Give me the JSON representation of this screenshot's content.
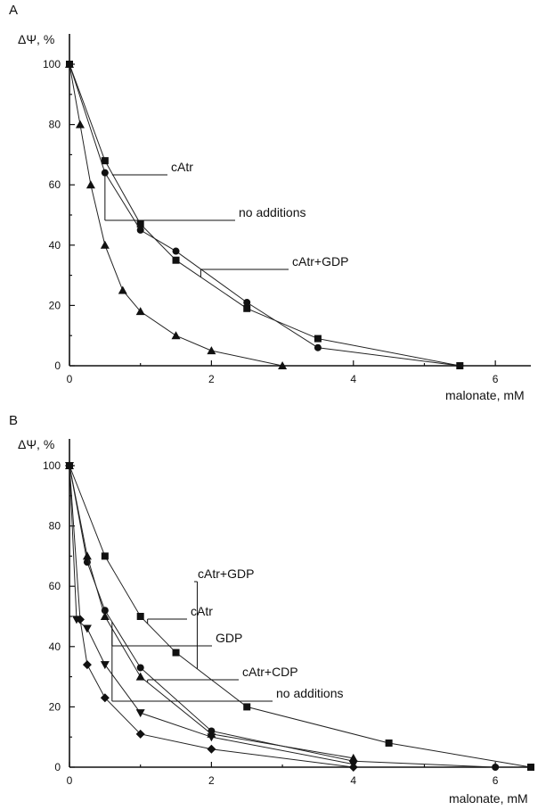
{
  "chart_data": [
    {
      "panel_label": "A",
      "type": "line",
      "xlabel": "malonate, mM",
      "ylabel": "ΔΨ, %",
      "xlim": [
        0,
        6.5
      ],
      "ylim": [
        0,
        105
      ],
      "xticks": [
        0,
        2,
        4,
        6
      ],
      "yticks": [
        0,
        20,
        40,
        60,
        80,
        100
      ],
      "grid": false,
      "series": [
        {
          "name": "cAtr",
          "marker": "square",
          "x": [
            0,
            0.5,
            1.0,
            1.5,
            2.5,
            3.5,
            5.5
          ],
          "y": [
            100,
            68,
            47,
            35,
            19,
            9,
            0
          ]
        },
        {
          "name": "no additions",
          "marker": "circle",
          "x": [
            0,
            0.5,
            1.0,
            1.5,
            2.5,
            3.5,
            5.5
          ],
          "y": [
            100,
            64,
            45,
            38,
            21,
            6,
            0
          ]
        },
        {
          "name": "",
          "marker": "triangle",
          "x": [
            0,
            0.15,
            0.3,
            0.5,
            0.75,
            1.0,
            1.5,
            2.0,
            3.0
          ],
          "y": [
            100,
            80,
            60,
            40,
            25,
            18,
            10,
            5,
            0
          ]
        }
      ],
      "annotations": [
        {
          "text": "cAtr",
          "series": 0,
          "at_x": 0.6
        },
        {
          "text": "no additions",
          "series": 1,
          "at_x": 0.5
        },
        {
          "text": "cAtr+GDP",
          "series": 0,
          "at_x": 1.85
        }
      ]
    },
    {
      "panel_label": "B",
      "type": "line",
      "xlabel": "malonate, mM",
      "ylabel": "ΔΨ, %",
      "xlim": [
        0,
        6.5
      ],
      "ylim": [
        0,
        105
      ],
      "xticks": [
        0,
        2,
        4,
        6
      ],
      "yticks": [
        0,
        20,
        40,
        60,
        80,
        100
      ],
      "grid": false,
      "series": [
        {
          "name": "cAtr+GDP",
          "marker": "square",
          "x": [
            0,
            0.5,
            1.0,
            1.5,
            2.5,
            4.5,
            6.5
          ],
          "y": [
            100,
            70,
            50,
            38,
            20,
            8,
            0
          ]
        },
        {
          "name": "cAtr",
          "marker": "circle",
          "x": [
            0,
            0.25,
            0.5,
            1.0,
            2.0,
            4.0,
            6.0
          ],
          "y": [
            100,
            68,
            52,
            33,
            12,
            2,
            0
          ]
        },
        {
          "name": "GDP",
          "marker": "triangle",
          "x": [
            0,
            0.25,
            0.5,
            1.0,
            2.0,
            4.0
          ],
          "y": [
            100,
            70,
            50,
            30,
            11,
            3
          ]
        },
        {
          "name": "cAtr+CDP",
          "marker": "triangle-down",
          "x": [
            0,
            0.1,
            0.25,
            0.5,
            1.0,
            2.0,
            4.0
          ],
          "y": [
            100,
            49,
            46,
            34,
            18,
            10,
            1
          ]
        },
        {
          "name": "no additions",
          "marker": "diamond",
          "x": [
            0,
            0.15,
            0.25,
            0.5,
            1.0,
            2.0,
            4.0
          ],
          "y": [
            100,
            49,
            34,
            23,
            11,
            6,
            0
          ]
        }
      ],
      "annotations": [
        {
          "text": "cAtr+GDP",
          "series": 0,
          "at_x": 1.8
        },
        {
          "text": "cAtr",
          "series": 0,
          "at_x": 1.1
        },
        {
          "text": "GDP",
          "series": 1,
          "at_x": 0.6
        },
        {
          "text": "cAtr+CDP",
          "series": 2,
          "at_x": 1.1
        },
        {
          "text": "no additions",
          "series": 2,
          "at_x": 0.6
        }
      ]
    }
  ]
}
